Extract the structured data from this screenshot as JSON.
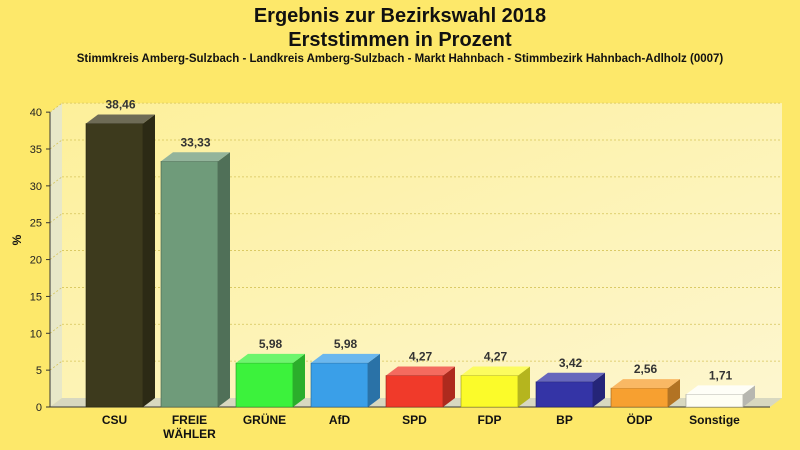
{
  "title": "Ergebnis zur Bezirkswahl 2018",
  "subtitle": "Erststimmen in Prozent",
  "subtitle2": "Stimmkreis Amberg-Sulzbach - Landkreis Amberg-Sulzbach - Markt Hahnbach - Stimmbezirk Hahnbach-Adlholz (0007)",
  "chart_data": {
    "type": "bar",
    "title": "Ergebnis zur Bezirkswahl 2018",
    "subtitle": "Erststimmen in Prozent",
    "ylabel": "%",
    "xlabel": "",
    "ylim": [
      0,
      40
    ],
    "yticks": [
      0,
      5,
      10,
      15,
      20,
      25,
      30,
      35,
      40
    ],
    "grid": true,
    "categories": [
      "CSU",
      "FREIE WÄHLER",
      "GRÜNE",
      "AfD",
      "SPD",
      "FDP",
      "BP",
      "ÖDP",
      "Sonstige"
    ],
    "category_lines": [
      [
        "CSU"
      ],
      [
        "FREIE",
        "WÄHLER"
      ],
      [
        "GRÜNE"
      ],
      [
        "AfD"
      ],
      [
        "SPD"
      ],
      [
        "FDP"
      ],
      [
        "BP"
      ],
      [
        "ÖDP"
      ],
      [
        "Sonstige"
      ]
    ],
    "values": [
      38.46,
      33.33,
      5.98,
      5.98,
      4.27,
      4.27,
      3.42,
      2.56,
      1.71
    ],
    "value_labels": [
      "38,46",
      "33,33",
      "5,98",
      "5,98",
      "4,27",
      "4,27",
      "3,42",
      "2,56",
      "1,71"
    ],
    "colors": [
      "#3d3a1d",
      "#6f9b7a",
      "#3cf23c",
      "#3a9fe8",
      "#f03a2a",
      "#fbfb2a",
      "#3434a6",
      "#f7a030",
      "#fefef4"
    ]
  }
}
